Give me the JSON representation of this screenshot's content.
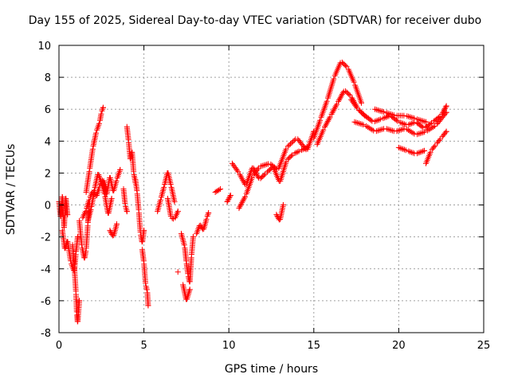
{
  "chart_data": {
    "type": "scatter",
    "title": "Day 155 of 2025, Sidereal Day-to-day VTEC variation (SDTVAR) for receiver dubo",
    "xlabel": "GPS time / hours",
    "ylabel": "SDTVAR / TECUs",
    "xlim": [
      0,
      25
    ],
    "ylim": [
      -8,
      10
    ],
    "xticks": [
      0,
      5,
      10,
      15,
      20,
      25
    ],
    "yticks": [
      -8,
      -6,
      -4,
      -2,
      0,
      2,
      4,
      6,
      8,
      10
    ],
    "grid": true,
    "marker": "+",
    "color": "#ff0000",
    "segments": [
      {
        "x": [
          0.0,
          0.1,
          0.2,
          0.3,
          0.4,
          0.5
        ],
        "y": [
          0.2,
          -0.8,
          0.6,
          -1.5,
          0.5,
          -0.6
        ]
      },
      {
        "x": [
          0.2,
          0.35,
          0.5,
          0.7,
          0.9,
          1.0,
          1.1
        ],
        "y": [
          -1.6,
          -2.8,
          -2.2,
          -3.6,
          -4.2,
          -3.0,
          -2.0
        ]
      },
      {
        "x": [
          0.8,
          0.9,
          1.0,
          1.05,
          1.1,
          1.2
        ],
        "y": [
          -2.5,
          -3.8,
          -5.5,
          -6.8,
          -7.4,
          -6.0
        ]
      },
      {
        "x": [
          1.2,
          1.35,
          1.5,
          1.6,
          1.7,
          1.8
        ],
        "y": [
          -1.0,
          -2.6,
          -3.4,
          -2.8,
          -1.2,
          0.2
        ]
      },
      {
        "x": [
          1.6,
          1.8,
          2.0,
          2.2,
          2.4,
          2.5,
          2.6
        ],
        "y": [
          0.8,
          2.2,
          3.6,
          4.6,
          5.2,
          5.8,
          6.1
        ]
      },
      {
        "x": [
          1.7,
          1.9,
          2.1,
          2.3,
          2.5,
          2.7,
          2.9,
          3.1
        ],
        "y": [
          -1.0,
          -0.2,
          1.0,
          2.0,
          1.4,
          0.6,
          -0.6,
          0.4
        ]
      },
      {
        "x": [
          1.4,
          1.6,
          1.8,
          2.0,
          2.2,
          2.4,
          2.6,
          2.8
        ],
        "y": [
          -0.8,
          -0.3,
          0.4,
          0.9,
          0.5,
          1.2,
          1.6,
          1.0
        ]
      },
      {
        "x": [
          2.6,
          2.8,
          3.0,
          3.2,
          3.4,
          3.6
        ],
        "y": [
          1.4,
          0.6,
          1.8,
          0.8,
          1.6,
          2.2
        ]
      },
      {
        "x": [
          3.0,
          3.2,
          3.4
        ],
        "y": [
          -1.6,
          -2.0,
          -1.2
        ]
      },
      {
        "x": [
          4.0,
          4.1,
          4.2,
          4.3,
          4.4,
          4.5
        ],
        "y": [
          4.9,
          4.0,
          2.8,
          3.4,
          2.0,
          1.4
        ]
      },
      {
        "x": [
          3.8,
          3.9,
          4.0
        ],
        "y": [
          1.0,
          0.0,
          -0.4
        ]
      },
      {
        "x": [
          4.5,
          4.6,
          4.7,
          4.8,
          4.9,
          5.0
        ],
        "y": [
          1.6,
          0.8,
          -0.4,
          -1.8,
          -2.4,
          -1.6
        ]
      },
      {
        "x": [
          4.9,
          5.0,
          5.1,
          5.2,
          5.25
        ],
        "y": [
          -2.8,
          -3.6,
          -5.0,
          -5.4,
          -6.3
        ]
      },
      {
        "x": [
          5.8,
          6.0,
          6.2,
          6.4,
          6.6,
          6.8
        ],
        "y": [
          -0.4,
          0.4,
          1.2,
          2.1,
          1.2,
          0.2
        ]
      },
      {
        "x": [
          6.4,
          6.6,
          6.8,
          7.0
        ],
        "y": [
          0.4,
          -0.8,
          -0.9,
          -0.4
        ]
      },
      {
        "x": [
          7.2,
          7.4,
          7.5,
          7.6,
          7.7,
          7.8,
          7.9
        ],
        "y": [
          -1.8,
          -2.6,
          -3.6,
          -4.4,
          -4.9,
          -3.2,
          -2.0
        ]
      },
      {
        "x": [
          7.3,
          7.5,
          7.7
        ],
        "y": [
          -5.0,
          -6.0,
          -5.3
        ]
      },
      {
        "x": [
          7.0
        ],
        "y": [
          -4.2
        ]
      },
      {
        "x": [
          8.1,
          8.3,
          8.5,
          8.7,
          8.8
        ],
        "y": [
          -1.8,
          -1.2,
          -1.6,
          -0.8,
          -0.5
        ]
      },
      {
        "x": [
          9.2,
          9.5
        ],
        "y": [
          0.8,
          1.0
        ]
      },
      {
        "x": [
          9.9,
          10.1
        ],
        "y": [
          0.2,
          0.6
        ]
      },
      {
        "x": [
          10.2,
          10.6,
          11.0,
          11.4,
          11.8,
          12.2,
          12.6,
          13.0,
          13.4,
          13.8,
          14.2,
          14.6
        ],
        "y": [
          2.6,
          2.0,
          1.2,
          2.4,
          1.6,
          2.0,
          2.4,
          1.4,
          2.8,
          3.2,
          3.4,
          3.6
        ]
      },
      {
        "x": [
          10.6,
          11.0,
          11.4,
          11.8,
          12.4,
          12.9,
          13.4,
          14.0,
          14.6,
          15.0
        ],
        "y": [
          -0.2,
          0.6,
          1.8,
          2.4,
          2.6,
          2.2,
          3.6,
          4.2,
          3.4,
          4.6
        ]
      },
      {
        "x": [
          12.8,
          13.0,
          13.2
        ],
        "y": [
          -0.6,
          -1.0,
          0.0
        ]
      },
      {
        "x": [
          15.0,
          15.4,
          15.8,
          16.2,
          16.6,
          17.0,
          17.4,
          17.8
        ],
        "y": [
          4.2,
          5.4,
          6.6,
          8.0,
          9.0,
          8.6,
          7.6,
          6.4
        ]
      },
      {
        "x": [
          15.2,
          15.6,
          16.0,
          16.4,
          16.8,
          17.2,
          17.6,
          18.0
        ],
        "y": [
          3.8,
          4.8,
          5.6,
          6.4,
          7.2,
          6.8,
          6.0,
          5.6
        ]
      },
      {
        "x": [
          17.2,
          17.6,
          18.0,
          18.5,
          19.0,
          19.5,
          20.0,
          20.5,
          21.0,
          21.5,
          22.0,
          22.5,
          22.8
        ],
        "y": [
          6.6,
          6.0,
          5.6,
          5.2,
          5.4,
          5.6,
          5.2,
          5.0,
          5.2,
          4.8,
          5.2,
          5.6,
          6.2
        ]
      },
      {
        "x": [
          17.4,
          18.0,
          18.6,
          19.2,
          19.8,
          20.4,
          21.0,
          21.6,
          22.2,
          22.8
        ],
        "y": [
          5.2,
          5.0,
          4.6,
          4.8,
          4.6,
          4.8,
          4.4,
          4.6,
          5.0,
          5.8
        ]
      },
      {
        "x": [
          18.6,
          19.2,
          19.8,
          20.4,
          21.0,
          21.6
        ],
        "y": [
          6.0,
          5.8,
          5.6,
          5.6,
          5.4,
          5.2
        ]
      },
      {
        "x": [
          20.0,
          20.5,
          21.0,
          21.5
        ],
        "y": [
          3.6,
          3.4,
          3.2,
          3.4
        ]
      },
      {
        "x": [
          21.6,
          21.9,
          22.2,
          22.5,
          22.8
        ],
        "y": [
          2.6,
          3.4,
          3.8,
          4.2,
          4.6
        ]
      }
    ]
  }
}
